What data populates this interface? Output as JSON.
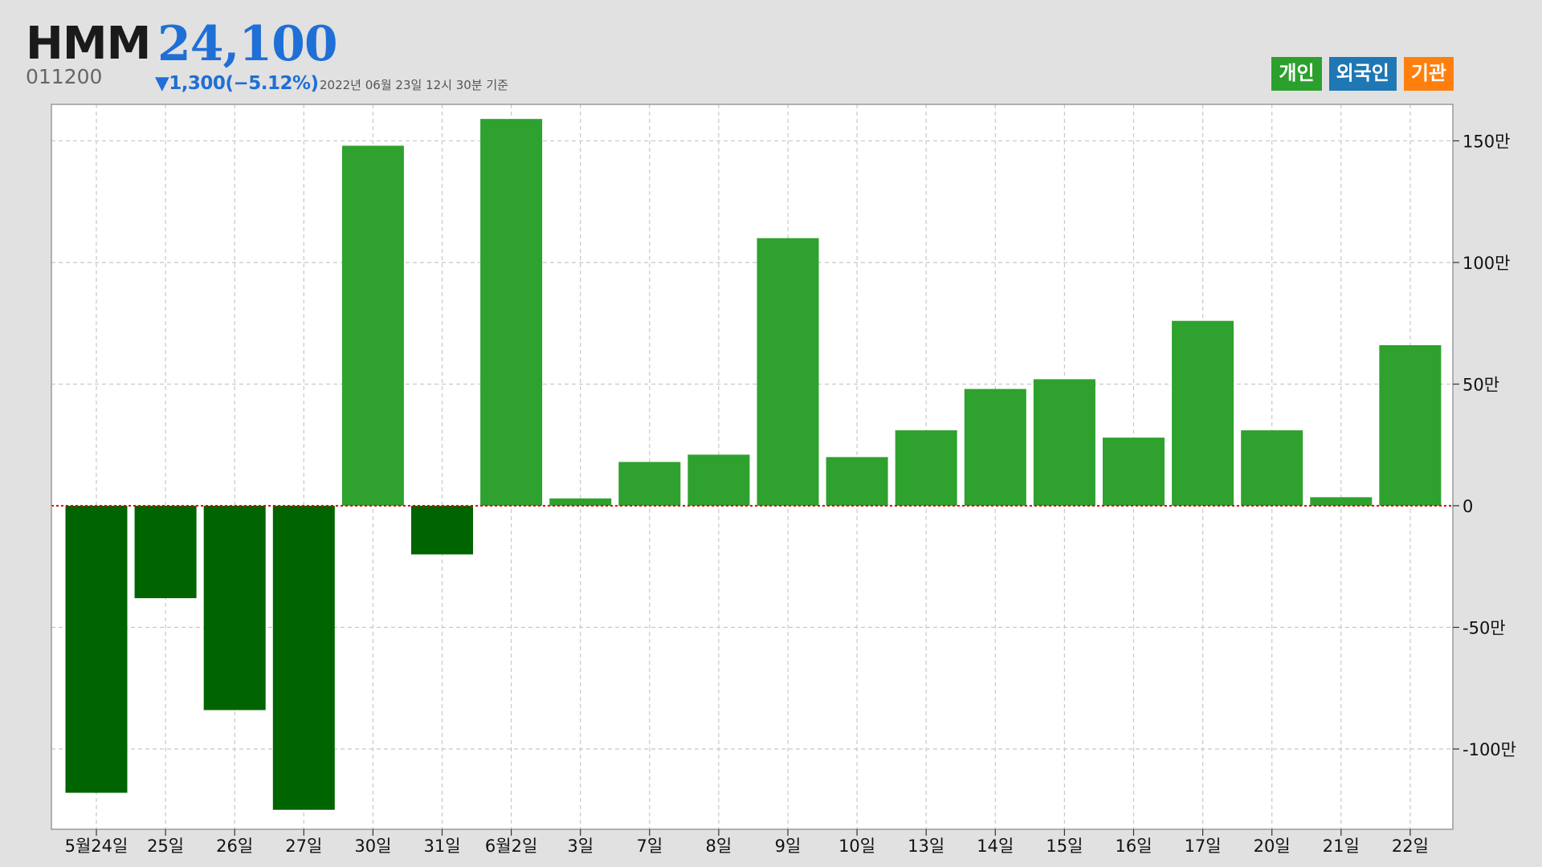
{
  "header": {
    "stock_name": "HMM",
    "stock_price": "24,100",
    "stock_code": "011200",
    "change": "▼1,300(−5.12%)",
    "timestamp": "2022년 06월 23일 12시 30분 기준"
  },
  "legend": {
    "items": [
      {
        "label": "개인",
        "color": "#2ca02c"
      },
      {
        "label": "외국인",
        "color": "#1f77b4"
      },
      {
        "label": "기관",
        "color": "#ff7f0e"
      }
    ]
  },
  "colors": {
    "positive_bar": "#2ea12e",
    "negative_bar": "#006400",
    "zero_line": "#e00000",
    "grid": "#c8c8c8",
    "price_text": "#1f6fd6"
  },
  "chart_data": {
    "type": "bar",
    "categories": [
      "5월24일",
      "25일",
      "26일",
      "27일",
      "30일",
      "31일",
      "6월2일",
      "3일",
      "7일",
      "8일",
      "9일",
      "10일",
      "13일",
      "14일",
      "15일",
      "16일",
      "17일",
      "20일",
      "21일",
      "22일"
    ],
    "series": [
      {
        "name": "개인",
        "values": [
          -1180000,
          -380000,
          -840000,
          -1250000,
          1480000,
          -200000,
          1590000,
          30000,
          180000,
          210000,
          1100000,
          200000,
          310000,
          480000,
          520000,
          280000,
          760000,
          310000,
          35000,
          660000
        ]
      }
    ],
    "ylim": [
      -1330000,
      1650000
    ],
    "yticks": [
      {
        "value": 1500000,
        "label": "150만"
      },
      {
        "value": 1000000,
        "label": "100만"
      },
      {
        "value": 500000,
        "label": "50만"
      },
      {
        "value": 0,
        "label": "0"
      },
      {
        "value": -500000,
        "label": "-50만"
      },
      {
        "value": -1000000,
        "label": "-100만"
      }
    ],
    "grid": true,
    "y_axis_position": "right"
  }
}
